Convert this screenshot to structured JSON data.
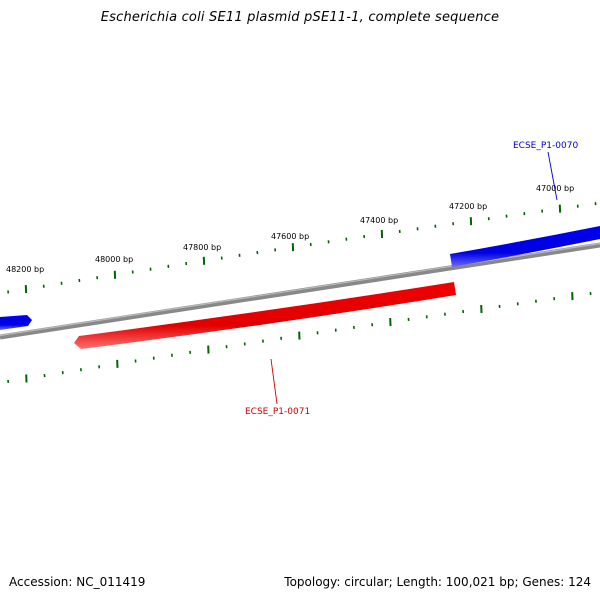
{
  "title": "Escherichia coli SE11 plasmid pSE11-1, complete sequence",
  "footer": {
    "accession": "Accession: NC_011419",
    "summary": "Topology: circular; Length: 100,021 bp; Genes: 124"
  },
  "ticks": [
    {
      "label": "47000 bp"
    },
    {
      "label": "47200 bp"
    },
    {
      "label": "47400 bp"
    },
    {
      "label": "47600 bp"
    },
    {
      "label": "47800 bp"
    },
    {
      "label": "48000 bp"
    },
    {
      "label": "48200 bp"
    }
  ],
  "genes": [
    {
      "name": "ECSE_P1-0070",
      "strand": "forward",
      "color": "#0000cc"
    },
    {
      "name": "ECSE_P1-0071",
      "strand": "reverse",
      "color": "#cc0000"
    }
  ],
  "colors": {
    "forward": "#0000ee",
    "reverse": "#ee0000",
    "backbone": "#888888",
    "ticks": "#006600"
  }
}
